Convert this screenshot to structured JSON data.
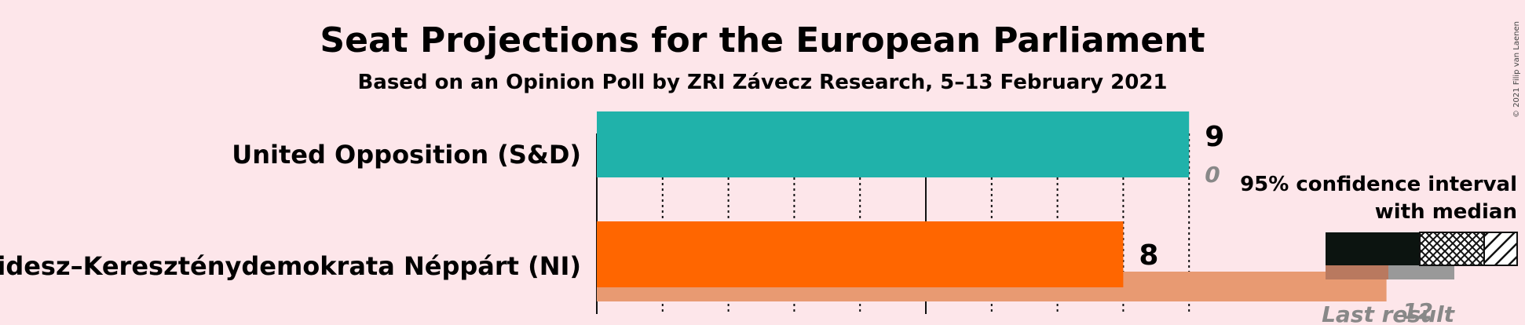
{
  "chart_data": {
    "type": "bar",
    "orientation": "horizontal",
    "title": "Seat Projections for the European Parliament",
    "subtitle": "Based on an Opinion Poll by ZRI Závecz Research, 5–13 February 2021",
    "xlim": [
      0,
      14
    ],
    "grid": true,
    "series": [
      {
        "party": "United Opposition (S&D)",
        "median": 9,
        "ci_low": 9,
        "ci_high": 9,
        "median_label": "9",
        "last_result": 0,
        "last_result_label": "0",
        "color": "#20b2aa"
      },
      {
        "party": "Fidesz–Kereszténydemokrata Néppárt (NI)",
        "median": 8,
        "ci_low": 8,
        "ci_high": 8,
        "median_label": "8",
        "last_result": 12,
        "last_result_label": "12",
        "color": "#ff6600",
        "last_result_color": "#e89a72"
      }
    ],
    "legend": {
      "placement": "right",
      "line1": "95% confidence interval",
      "line2": "with median",
      "last_result_label": "Last result",
      "last_result_value": "12"
    },
    "copyright": "© 2021 Filip van Laenen"
  }
}
